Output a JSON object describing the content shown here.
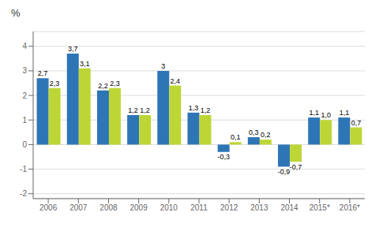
{
  "chart_data": {
    "type": "bar",
    "ylabel": "%",
    "categories": [
      "2006",
      "2007",
      "2008",
      "2009",
      "2010",
      "2011",
      "2012",
      "2013",
      "2014",
      "2015*",
      "2016*"
    ],
    "series": [
      {
        "color": "#2e75b6",
        "values": [
          2.7,
          3.7,
          2.2,
          1.2,
          3.0,
          1.3,
          -0.3,
          0.3,
          -0.9,
          1.1,
          1.1
        ],
        "value_labels": [
          "2,7",
          "3,7",
          "2,2",
          "1,2",
          "3",
          "1,3",
          "-0,3",
          "0,3",
          "-0,9",
          "1,1",
          "1,1"
        ]
      },
      {
        "color": "#bdd636",
        "values": [
          2.3,
          3.1,
          2.3,
          1.2,
          2.4,
          1.2,
          0.1,
          0.2,
          -0.7,
          1.0,
          0.7
        ],
        "value_labels": [
          "2,3",
          "3,1",
          "2,3",
          "1,2",
          "2,4",
          "1,2",
          "0,1",
          "0,2",
          "-0,7",
          "1,0",
          "0,7"
        ]
      }
    ],
    "ylim": [
      -2.2,
      4.6
    ],
    "yticks": [
      -2,
      -1,
      0,
      1,
      2,
      3,
      4
    ],
    "grid": true,
    "data_labels": true
  }
}
